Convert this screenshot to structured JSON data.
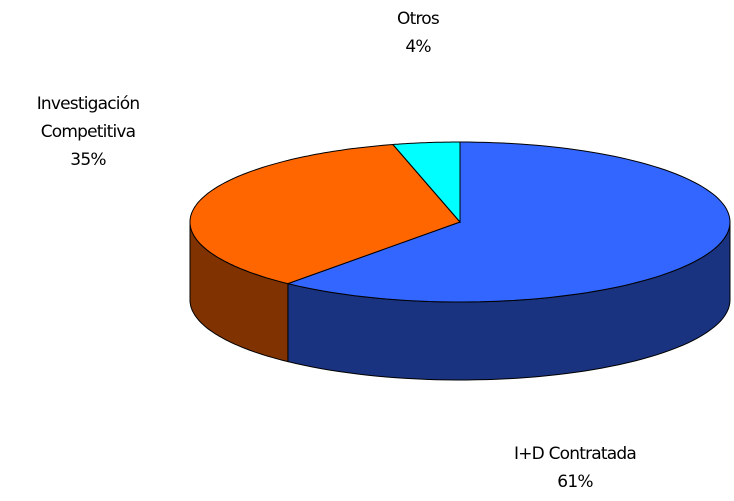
{
  "chart_data": {
    "type": "pie3d",
    "categories": [
      "I+D Contratada",
      "Investigación Competitiva",
      "Otros"
    ],
    "values": [
      61,
      35,
      4
    ],
    "value_labels": [
      "61%",
      "35%",
      "4%"
    ],
    "colors": [
      "#3366ff",
      "#ff6600",
      "#00ffff"
    ],
    "side_colors": [
      "#1a3380",
      "#803300",
      "#008080"
    ]
  }
}
